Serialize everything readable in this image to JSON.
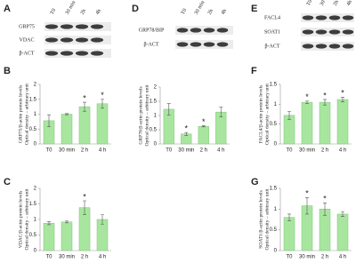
{
  "blots": [
    {
      "panel": "A",
      "lanes": [
        "T0",
        "30 min",
        "2h",
        "4h"
      ],
      "rows": [
        "GRP75",
        "VDAC",
        "β-ACT"
      ]
    },
    {
      "panel": "D",
      "lanes": [
        "T0",
        "30 min",
        "2h",
        "4h"
      ],
      "rows": [
        "GRP78/BIP",
        "β-ACT"
      ]
    },
    {
      "panel": "E",
      "lanes": [
        "T0",
        "30 min",
        "2h",
        "4h"
      ],
      "rows": [
        "FACL4",
        "SOAT1",
        "β-ACT"
      ]
    }
  ],
  "chart_data": [
    {
      "type": "bar",
      "panel": "B",
      "ylabel": [
        "GRP75/β-actin protein levels",
        "Optical density – arbitrary unit"
      ],
      "categories": [
        "T0",
        "30 min",
        "2 h",
        "4 h"
      ],
      "values": [
        0.78,
        1.0,
        1.25,
        1.35
      ],
      "errors": [
        0.2,
        0.02,
        0.15,
        0.15
      ],
      "annotations": [
        null,
        null,
        "*",
        "*"
      ],
      "color": "#a8e6a0",
      "ylim": [
        0,
        2
      ],
      "yticks": [
        0,
        0.5,
        1,
        1.5,
        2
      ]
    },
    {
      "type": "bar",
      "panel": "C",
      "ylabel": [
        "VDAC/β-actin protein levels",
        "Optical density – arbitrary unit"
      ],
      "categories": [
        "T0",
        "30 min",
        "2 h",
        "4 h"
      ],
      "values": [
        0.88,
        0.92,
        1.38,
        1.0
      ],
      "errors": [
        0.05,
        0.03,
        0.22,
        0.15
      ],
      "annotations": [
        null,
        null,
        "*",
        null
      ],
      "color": "#a8e6a0",
      "ylim": [
        0,
        2
      ],
      "yticks": [
        0,
        0.5,
        1,
        1.5,
        2
      ]
    },
    {
      "type": "bar",
      "ylabel": [
        "GRP78/β-actin protein levels",
        "Optical density – arbitrary unit"
      ],
      "categories": [
        "T0",
        "30 min",
        "2 h",
        "4 h"
      ],
      "values": [
        1.22,
        0.35,
        0.62,
        1.12
      ],
      "errors": [
        0.2,
        0.05,
        0.02,
        0.17
      ],
      "annotations": [
        null,
        "*",
        "*",
        null
      ],
      "color": "#a8e6a0",
      "ylim": [
        0,
        2
      ],
      "yticks": [
        0,
        0.5,
        1,
        1.5,
        2
      ]
    },
    {
      "type": "bar",
      "panel": "F",
      "ylabel": [
        "FACL4/β-actin protein levels",
        "Optical density – arbitrary unit"
      ],
      "categories": [
        "T0",
        "30 min",
        "2 h",
        "4 h"
      ],
      "values": [
        0.72,
        1.05,
        1.05,
        1.12
      ],
      "errors": [
        0.1,
        0.03,
        0.07,
        0.06
      ],
      "annotations": [
        null,
        "*",
        "*",
        "*"
      ],
      "color": "#a8e6a0",
      "ylim": [
        0,
        1.5
      ],
      "yticks": [
        0,
        0.5,
        1,
        1.5
      ]
    },
    {
      "type": "bar",
      "panel": "G",
      "ylabel": [
        "SOAT1/β-actin protein levels",
        "Optical density – arbitrary unit"
      ],
      "categories": [
        "T0",
        "30 min",
        "2 h",
        "4 h"
      ],
      "values": [
        0.8,
        1.08,
        1.0,
        0.88
      ],
      "errors": [
        0.08,
        0.2,
        0.15,
        0.06
      ],
      "annotations": [
        null,
        "*",
        "*",
        null
      ],
      "color": "#a8e6a0",
      "ylim": [
        0,
        1.5
      ],
      "yticks": [
        0,
        0.5,
        1,
        1.5
      ]
    }
  ]
}
